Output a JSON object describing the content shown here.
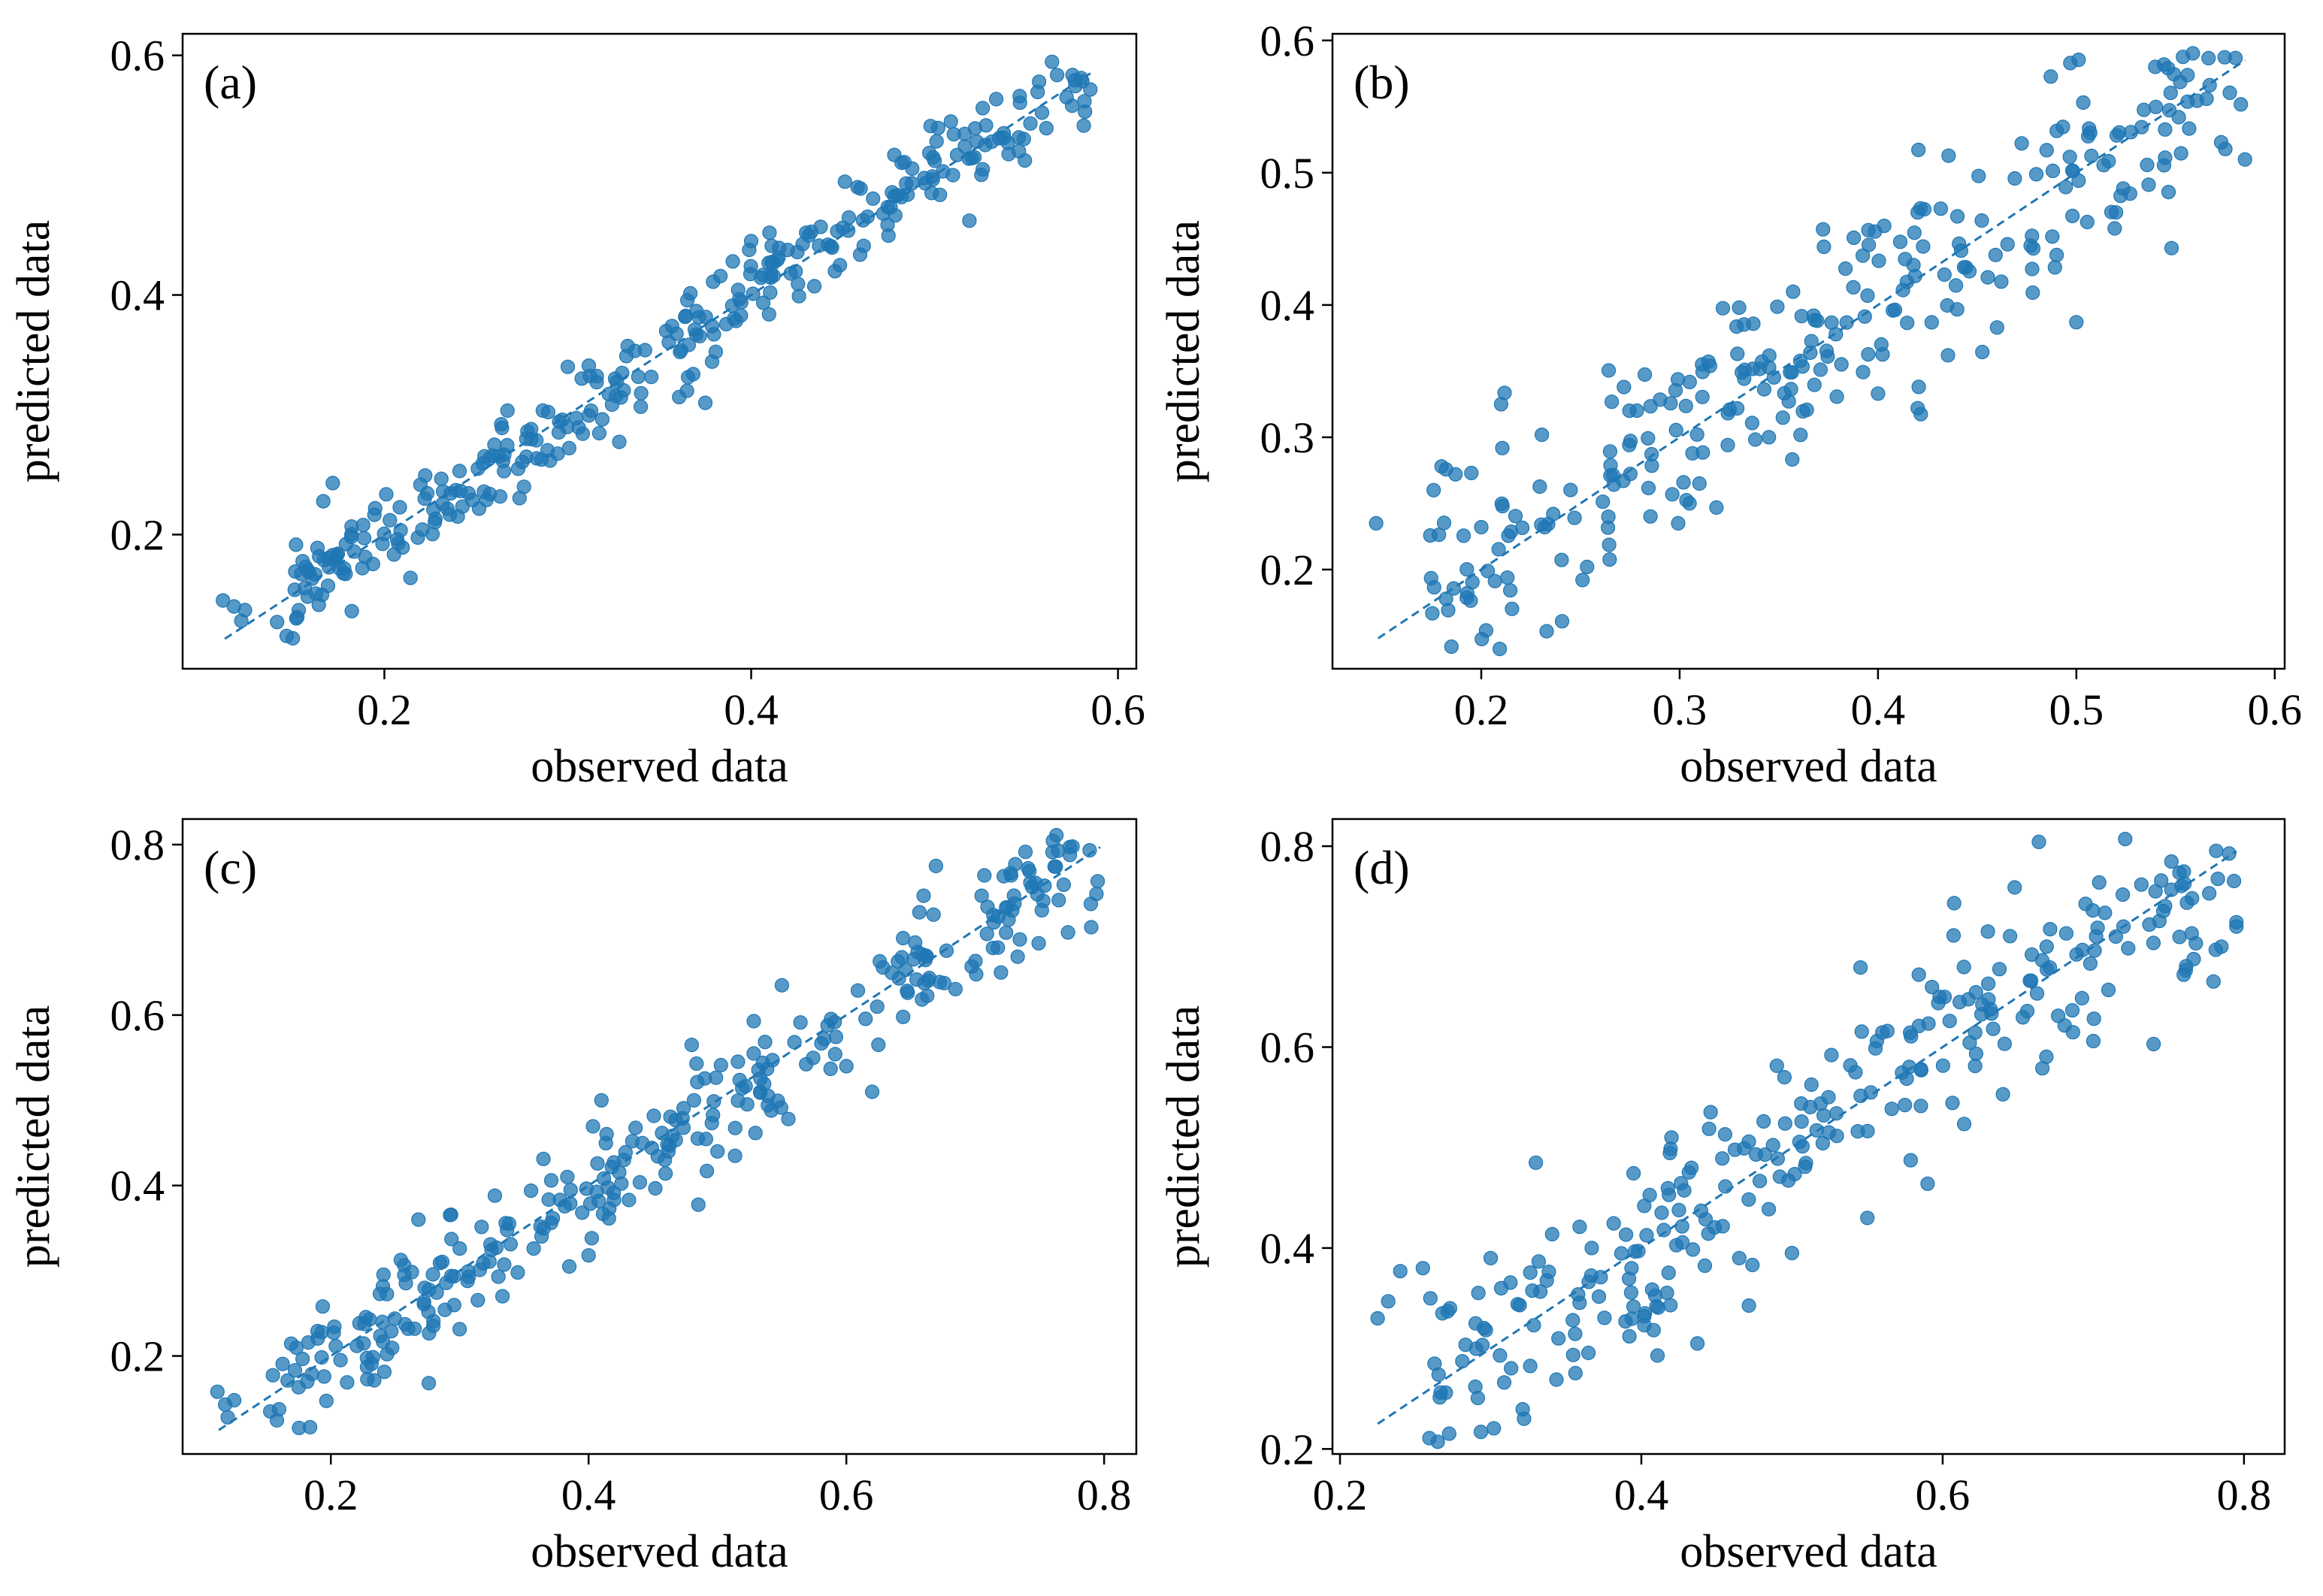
{
  "style": {
    "marker_color": "#1f77b4",
    "line_color": "#1f77b4"
  },
  "chart_data": [
    {
      "type": "scatter",
      "panel_label": "(a)",
      "xlabel": "observed data",
      "ylabel": "predicted data",
      "xlim": [
        0.09,
        0.61
      ],
      "ylim": [
        0.088,
        0.618
      ],
      "xticks": [
        0.2,
        0.4,
        0.6
      ],
      "yticks": [
        0.2,
        0.4,
        0.6
      ],
      "tick_labels_x": [
        "0.2",
        "0.4",
        "0.6"
      ],
      "tick_labels_y": [
        "0.2",
        "0.4",
        "0.6"
      ],
      "reference_line": {
        "x": [
          0.113,
          0.585
        ],
        "y": [
          0.113,
          0.585
        ]
      },
      "spread": 0.02,
      "points": [
        [
          0.112,
          0.145
        ],
        [
          0.118,
          0.14
        ],
        [
          0.124,
          0.137
        ],
        [
          0.122,
          0.128
        ],
        [
          0.152,
          0.13
        ],
        [
          0.174,
          0.183
        ],
        [
          0.182,
          0.198
        ],
        [
          0.189,
          0.197
        ],
        [
          0.188,
          0.172
        ],
        [
          0.195,
          0.222
        ],
        [
          0.203,
          0.212
        ],
        [
          0.207,
          0.196
        ],
        [
          0.575,
          0.558
        ],
        [
          0.582,
          0.553
        ],
        [
          0.546,
          0.52
        ],
        [
          0.54,
          0.527
        ],
        [
          0.523,
          0.528
        ],
        [
          0.519,
          0.462
        ],
        [
          0.5,
          0.512
        ],
        [
          0.51,
          0.5
        ],
        [
          0.458,
          0.49
        ],
        [
          0.472,
          0.468
        ],
        [
          0.43,
          0.452
        ],
        [
          0.41,
          0.452
        ],
        [
          0.4,
          0.445
        ],
        [
          0.39,
          0.428
        ],
        [
          0.375,
          0.31
        ],
        [
          0.365,
          0.32
        ],
        [
          0.34,
          0.318
        ],
        [
          0.3,
          0.34
        ],
        [
          0.28,
          0.288
        ],
        [
          0.26,
          0.275
        ],
        [
          0.232,
          0.236
        ],
        [
          0.222,
          0.23
        ],
        [
          0.251,
          0.255
        ],
        [
          0.241,
          0.253
        ]
      ],
      "n_generated": 290,
      "seed": 11
    },
    {
      "type": "scatter",
      "panel_label": "(b)",
      "xlabel": "observed data",
      "ylabel": "predicted data",
      "xlim": [
        0.125,
        0.605
      ],
      "ylim": [
        0.125,
        0.605
      ],
      "xticks": [
        0.2,
        0.3,
        0.4,
        0.5,
        0.6
      ],
      "yticks": [
        0.2,
        0.3,
        0.4,
        0.5,
        0.6
      ],
      "tick_labels_x": [
        "0.2",
        "0.3",
        "0.4",
        "0.5",
        "0.6"
      ],
      "tick_labels_y": [
        "0.2",
        "0.3",
        "0.4",
        "0.5",
        "0.6"
      ],
      "reference_line": {
        "x": [
          0.148,
          0.585
        ],
        "y": [
          0.148,
          0.585
        ]
      },
      "spread": 0.038,
      "points": [
        [
          0.147,
          0.235
        ],
        [
          0.176,
          0.26
        ],
        [
          0.18,
          0.278
        ],
        [
          0.187,
          0.272
        ],
        [
          0.195,
          0.273
        ],
        [
          0.2,
          0.232
        ],
        [
          0.21,
          0.325
        ],
        [
          0.232,
          0.232
        ],
        [
          0.548,
          0.443
        ],
        [
          0.573,
          0.523
        ],
        [
          0.585,
          0.51
        ],
        [
          0.5,
          0.387
        ],
        [
          0.485,
          0.517
        ],
        [
          0.46,
          0.383
        ],
        [
          0.42,
          0.322
        ],
        [
          0.4,
          0.333
        ],
        [
          0.305,
          0.25
        ],
        [
          0.31,
          0.265
        ],
        [
          0.33,
          0.398
        ],
        [
          0.345,
          0.3
        ],
        [
          0.42,
          0.47
        ],
        [
          0.44,
          0.467
        ],
        [
          0.52,
          0.47
        ]
      ],
      "n_generated": 275,
      "seed": 22
    },
    {
      "type": "scatter",
      "panel_label": "(c)",
      "xlabel": "observed data",
      "ylabel": "predicted data",
      "xlim": [
        0.085,
        0.825
      ],
      "ylim": [
        0.085,
        0.83
      ],
      "xticks": [
        0.2,
        0.4,
        0.6,
        0.8
      ],
      "yticks": [
        0.2,
        0.4,
        0.6,
        0.8
      ],
      "tick_labels_x": [
        "0.2",
        "0.4",
        "0.6",
        "0.8"
      ],
      "tick_labels_y": [
        "0.2",
        "0.4",
        "0.6",
        "0.8"
      ],
      "reference_line": {
        "x": [
          0.113,
          0.797
        ],
        "y": [
          0.113,
          0.797
        ]
      },
      "spread": 0.035,
      "points": [
        [
          0.112,
          0.158
        ],
        [
          0.118,
          0.143
        ],
        [
          0.125,
          0.148
        ],
        [
          0.12,
          0.128
        ],
        [
          0.153,
          0.135
        ],
        [
          0.193,
          0.228
        ],
        [
          0.23,
          0.243
        ],
        [
          0.24,
          0.24
        ],
        [
          0.26,
          0.232
        ],
        [
          0.265,
          0.232
        ],
        [
          0.268,
          0.36
        ],
        [
          0.257,
          0.295
        ],
        [
          0.79,
          0.703
        ],
        [
          0.795,
          0.757
        ],
        [
          0.772,
          0.697
        ],
        [
          0.742,
          0.769
        ],
        [
          0.72,
          0.65
        ],
        [
          0.64,
          0.663
        ],
        [
          0.55,
          0.635
        ],
        [
          0.48,
          0.565
        ],
        [
          0.41,
          0.5
        ],
        [
          0.4,
          0.318
        ],
        [
          0.385,
          0.305
        ],
        [
          0.345,
          0.298
        ],
        [
          0.33,
          0.293
        ],
        [
          0.5,
          0.44
        ],
        [
          0.555,
          0.478
        ],
        [
          0.6,
          0.54
        ],
        [
          0.62,
          0.51
        ],
        [
          0.705,
          0.74
        ],
        [
          0.66,
          0.74
        ]
      ],
      "n_generated": 290,
      "seed": 33
    },
    {
      "type": "scatter",
      "panel_label": "(d)",
      "xlabel": "observed data",
      "ylabel": "predicted data",
      "xlim": [
        0.195,
        0.827
      ],
      "ylim": [
        0.195,
        0.827
      ],
      "xticks": [
        0.2,
        0.4,
        0.6,
        0.8
      ],
      "yticks": [
        0.2,
        0.4,
        0.6,
        0.8
      ],
      "tick_labels_x": [
        "0.2",
        "0.4",
        "0.6",
        "0.8"
      ],
      "tick_labels_y": [
        "0.2",
        "0.4",
        "0.6",
        "0.8"
      ],
      "reference_line": {
        "x": [
          0.225,
          0.795
        ],
        "y": [
          0.225,
          0.795
        ]
      },
      "spread": 0.052,
      "points": [
        [
          0.225,
          0.33
        ],
        [
          0.232,
          0.347
        ],
        [
          0.24,
          0.377
        ],
        [
          0.255,
          0.38
        ],
        [
          0.26,
          0.35
        ],
        [
          0.268,
          0.335
        ],
        [
          0.273,
          0.34
        ],
        [
          0.29,
          0.325
        ],
        [
          0.3,
          0.39
        ],
        [
          0.307,
          0.36
        ],
        [
          0.33,
          0.485
        ],
        [
          0.345,
          0.31
        ],
        [
          0.795,
          0.72
        ],
        [
          0.785,
          0.7
        ],
        [
          0.76,
          0.672
        ],
        [
          0.74,
          0.603
        ],
        [
          0.72,
          0.72
        ],
        [
          0.63,
          0.715
        ],
        [
          0.59,
          0.464
        ],
        [
          0.55,
          0.43
        ],
        [
          0.5,
          0.395
        ],
        [
          0.41,
          0.342
        ],
        [
          0.42,
          0.51
        ],
        [
          0.465,
          0.39
        ],
        [
          0.495,
          0.57
        ],
        [
          0.7,
          0.606
        ],
        [
          0.64,
          0.553
        ]
      ],
      "n_generated": 270,
      "seed": 44
    }
  ]
}
